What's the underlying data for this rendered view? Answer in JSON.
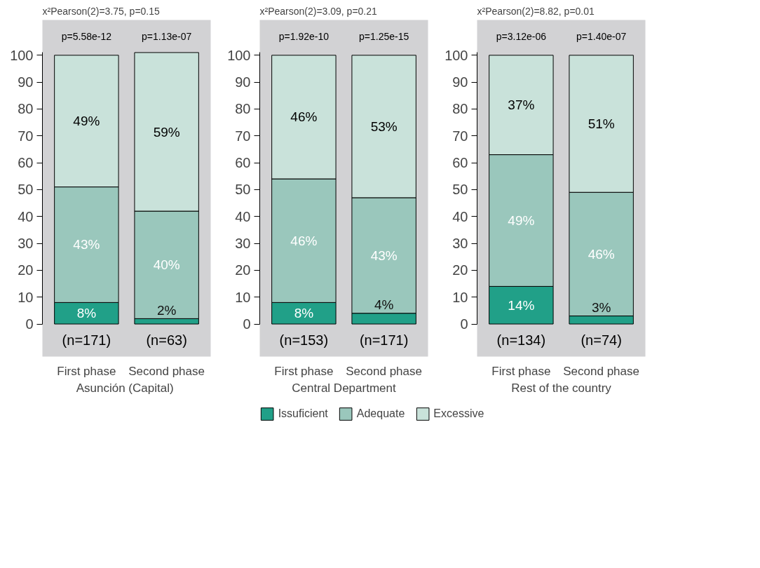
{
  "chart_data": [
    {
      "type": "bar",
      "stacked": true,
      "title": "x²Pearson(2)=3.75, p=0.15",
      "xlabel": "Asunción  (Capital)",
      "categories": [
        "First phase",
        "Second phase"
      ],
      "ylim": [
        0,
        101
      ],
      "yticks": [
        0,
        10,
        20,
        30,
        40,
        50,
        60,
        70,
        80,
        90,
        100
      ],
      "grid": false,
      "series": [
        {
          "color": "#21a088",
          "values": [
            8,
            2
          ],
          "value_labels": [
            "8%",
            "2%"
          ]
        },
        {
          "color": "#9ac7bc",
          "values": [
            43,
            40
          ],
          "value_labels": [
            "43%",
            "40%"
          ]
        },
        {
          "color": "#c9e2da",
          "values": [
            49,
            59
          ],
          "value_labels": [
            "49%",
            "59%"
          ]
        }
      ],
      "annotations": [
        "p=5.58e-12",
        "p=1.13e-07",
        "(n=171)",
        "(n=63)"
      ]
    },
    {
      "type": "bar",
      "stacked": true,
      "title": "x²Pearson(2)=3.09, p=0.21",
      "xlabel": "Central Department",
      "categories": [
        "First phase",
        "Second phase"
      ],
      "ylim": [
        0,
        101
      ],
      "yticks": [
        0,
        10,
        20,
        30,
        40,
        50,
        60,
        70,
        80,
        90,
        100
      ],
      "grid": false,
      "legend": "bottom",
      "series": [
        {
          "name": "Issuficient",
          "color": "#21a088",
          "values": [
            8,
            4
          ],
          "value_labels": [
            "8%",
            "4%"
          ]
        },
        {
          "name": "Adequate",
          "color": "#9ac7bc",
          "values": [
            46,
            43
          ],
          "value_labels": [
            "46%",
            "43%"
          ]
        },
        {
          "name": "Excessive",
          "color": "#c9e2da",
          "values": [
            46,
            53
          ],
          "value_labels": [
            "46%",
            "53%"
          ]
        }
      ],
      "annotations": [
        "p=1.92e-10",
        "p=1.25e-15",
        "(n=153)",
        "(n=171)"
      ]
    },
    {
      "type": "bar",
      "stacked": true,
      "title": "x²Pearson(2)=8.82, p=0.01",
      "xlabel": "Rest of the country",
      "categories": [
        "First phase",
        "Second phase"
      ],
      "ylim": [
        0,
        101
      ],
      "yticks": [
        0,
        10,
        20,
        30,
        40,
        50,
        60,
        70,
        80,
        90,
        100
      ],
      "grid": false,
      "series": [
        {
          "color": "#21a088",
          "values": [
            14,
            3
          ],
          "value_labels": [
            "14%",
            "3%"
          ]
        },
        {
          "color": "#9ac7bc",
          "values": [
            49,
            46
          ],
          "value_labels": [
            "49%",
            "46%"
          ]
        },
        {
          "color": "#c9e2da",
          "values": [
            37,
            51
          ],
          "value_labels": [
            "37%",
            "51%"
          ]
        }
      ],
      "annotations": [
        "p=3.12e-06",
        "p=1.40e-07",
        "(n=134)",
        "(n=74)"
      ]
    }
  ]
}
